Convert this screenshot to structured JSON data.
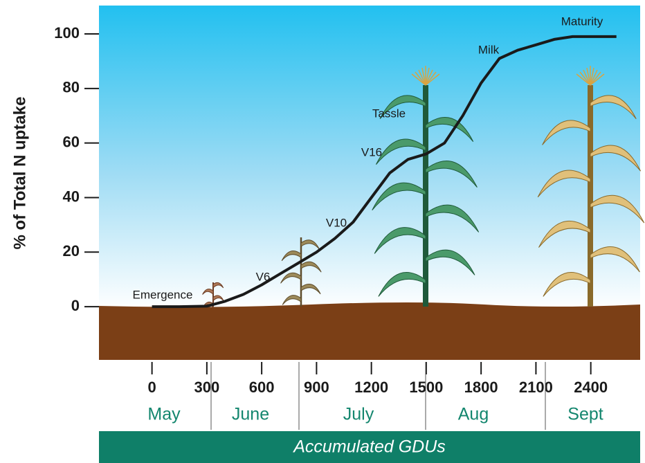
{
  "chart_data": {
    "type": "line",
    "ylabel": "% of Total N uptake",
    "xlabel": "Accumulated GDUs",
    "x": [
      0,
      150,
      300,
      400,
      500,
      600,
      700,
      800,
      900,
      1000,
      1100,
      1200,
      1300,
      1400,
      1500,
      1600,
      1700,
      1800,
      1900,
      2000,
      2100,
      2200,
      2300,
      2400,
      2540
    ],
    "series": [
      {
        "color": "#1a1a1a",
        "values": [
          0,
          0,
          0.2,
          2,
          4.5,
          8,
          12,
          16,
          20,
          25,
          31,
          40,
          49,
          54,
          56,
          60,
          70,
          82,
          91,
          94,
          96,
          98,
          99,
          99,
          99
        ]
      }
    ],
    "xlim": [
      -290,
      2670
    ],
    "xticks": [
      0,
      300,
      600,
      900,
      1200,
      1500,
      1800,
      2100,
      2400
    ],
    "ylim": [
      -19.5,
      110.4
    ],
    "yticks": [
      0,
      20,
      40,
      60,
      80,
      100
    ],
    "annotations": [
      "Emergence",
      "V6",
      "V10",
      "V16",
      "Tassle",
      "Milk",
      "Maturity"
    ],
    "months": [
      "May",
      "June",
      "July",
      "Aug",
      "Sept"
    ]
  }
}
